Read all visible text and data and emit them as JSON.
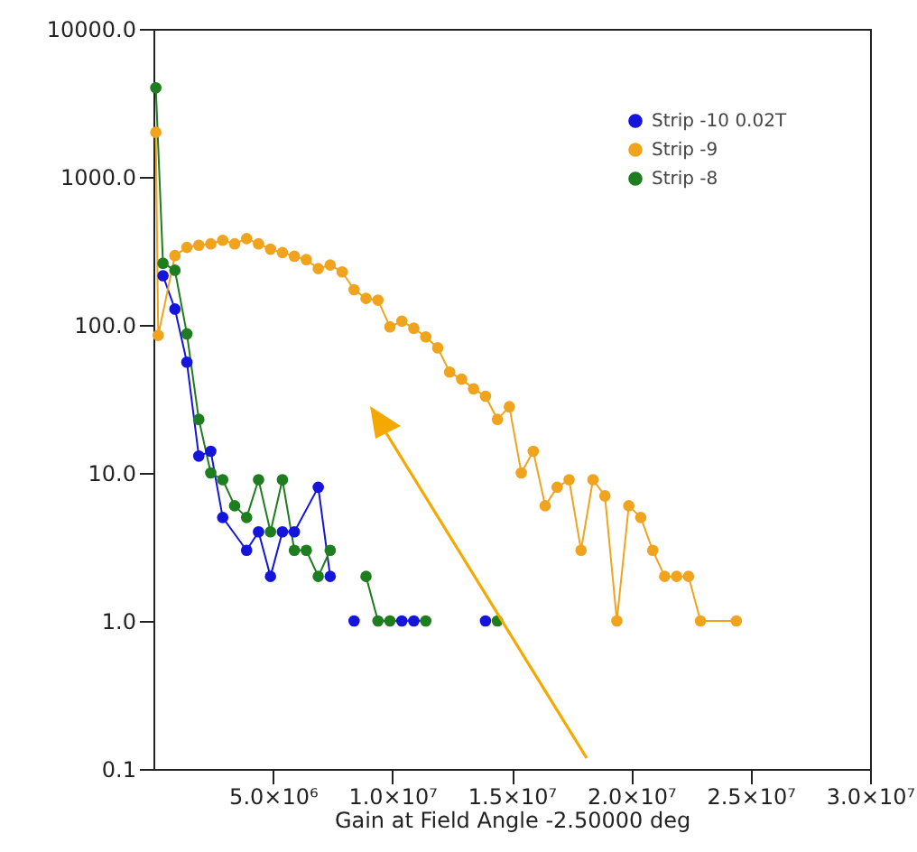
{
  "chart_data": {
    "type": "line",
    "xlabel": "Gain at Field Angle -2.50000 deg",
    "log": "y",
    "xlim": [
      0,
      30000000
    ],
    "ylim": [
      0.1,
      10000
    ],
    "xticks": [
      {
        "value": 5000000,
        "label": "5.0×10⁶"
      },
      {
        "value": 10000000,
        "label": "1.0×10⁷"
      },
      {
        "value": 15000000,
        "label": "1.5×10⁷"
      },
      {
        "value": 20000000,
        "label": "2.0×10⁷"
      },
      {
        "value": 25000000,
        "label": "2.5×10⁷"
      },
      {
        "value": 30000000,
        "label": "3.0×10⁷"
      }
    ],
    "yticks": [
      {
        "value": 0.1,
        "label": "0.1"
      },
      {
        "value": 1,
        "label": "1.0"
      },
      {
        "value": 10,
        "label": "10.0"
      },
      {
        "value": 100,
        "label": "100.0"
      },
      {
        "value": 1000,
        "label": "1000.0"
      },
      {
        "value": 10000,
        "label": "10000.0"
      }
    ],
    "legend": "top right",
    "marker": "circle",
    "line_style": "solid",
    "series": [
      {
        "name": "Strip -10 0.02T",
        "color": "#1414dc",
        "x": [
          400000,
          900000,
          1400000,
          1900000,
          2400000,
          2900000,
          3900000,
          4400000,
          4900000,
          5400000,
          5900000,
          6900000,
          7400000,
          7900000,
          8400000,
          8900000,
          10400000,
          10900000,
          11400000,
          13900000
        ],
        "values": [
          215,
          128,
          56,
          13,
          14,
          5,
          3,
          4,
          2,
          4,
          4,
          8,
          2,
          null,
          1,
          null,
          1,
          1,
          null,
          1
        ]
      },
      {
        "name": "Strip -9",
        "color": "#f0a41e",
        "x": [
          100000,
          200000,
          900000,
          1400000,
          1900000,
          2400000,
          2900000,
          3400000,
          3900000,
          4400000,
          4900000,
          5400000,
          5900000,
          6400000,
          6900000,
          7400000,
          7900000,
          8400000,
          8900000,
          9400000,
          9900000,
          10400000,
          10900000,
          11400000,
          11900000,
          12400000,
          12900000,
          13400000,
          13900000,
          14400000,
          14900000,
          15400000,
          15900000,
          16400000,
          16900000,
          17400000,
          17900000,
          18400000,
          18900000,
          19400000,
          19900000,
          20400000,
          20900000,
          21400000,
          21900000,
          22400000,
          22900000,
          24400000
        ],
        "values": [
          2000,
          85,
          294,
          334,
          345,
          353,
          373,
          353,
          383,
          353,
          325,
          308,
          291,
          276,
          240,
          254,
          228,
          173,
          151,
          147,
          97,
          106,
          95,
          83,
          70,
          48,
          43,
          37,
          33,
          23,
          28,
          10,
          14,
          6,
          8,
          9,
          3,
          9,
          7,
          1,
          6,
          5,
          3,
          2,
          2,
          2,
          1,
          1
        ]
      },
      {
        "name": "Strip -8",
        "color": "#1e7d1e",
        "x": [
          100000,
          400000,
          900000,
          1400000,
          1900000,
          2400000,
          2900000,
          3400000,
          3900000,
          4400000,
          4900000,
          5400000,
          5900000,
          6400000,
          6900000,
          7400000,
          7900000,
          8900000,
          9400000,
          9900000,
          11400000,
          12900000,
          14400000
        ],
        "values": [
          4000,
          261,
          234,
          87,
          23,
          10,
          9,
          6,
          5,
          9,
          4,
          9,
          3,
          3,
          2,
          3,
          null,
          2,
          1,
          1,
          1,
          null,
          1
        ]
      }
    ]
  }
}
